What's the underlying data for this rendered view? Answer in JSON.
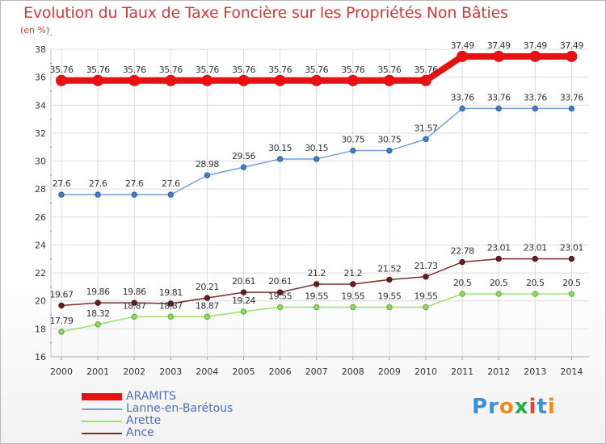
{
  "title": "Evolution du Taux de Taxe Foncière sur les Propriétés Non Bâties",
  "subtitle": "(en %)",
  "logo": {
    "letters": [
      "P",
      "r",
      "o",
      "x",
      "i",
      "t",
      "i"
    ],
    "colors": [
      "#3a8fd8",
      "#3a8fd8",
      "#f08a1c",
      "#2aa84a",
      "#e8432e",
      "#3a8fd8",
      "#f08a1c"
    ]
  },
  "chart_data": {
    "type": "line",
    "x": [
      "2000",
      "2001",
      "2002",
      "2003",
      "2004",
      "2005",
      "2006",
      "2007",
      "2008",
      "2009",
      "2010",
      "2011",
      "2012",
      "2013",
      "2014"
    ],
    "ylim": [
      16,
      38
    ],
    "yticks": [
      "16",
      "18",
      "20",
      "22",
      "24",
      "26",
      "28",
      "30",
      "32",
      "34",
      "36",
      "38"
    ],
    "grid": true,
    "legend": "bottom-left",
    "series": [
      {
        "name": "ARAMITS",
        "color": "#e81010",
        "values": [
          35.76,
          35.76,
          35.76,
          35.76,
          35.76,
          35.76,
          35.76,
          35.76,
          35.76,
          35.76,
          35.76,
          37.49,
          37.49,
          37.49,
          37.49
        ],
        "labels": [
          "35.76",
          "35.76",
          "35.76",
          "35.76",
          "35.76",
          "35.76",
          "35.76",
          "35.76",
          "35.76",
          "35.76",
          "35.76",
          "37.49",
          "37.49",
          "37.49",
          "37.49"
        ]
      },
      {
        "name": "Lanne-en-Barétous",
        "color": "#6fa0d8",
        "values": [
          27.6,
          27.6,
          27.6,
          27.6,
          28.98,
          29.56,
          30.15,
          30.15,
          30.75,
          30.75,
          31.57,
          33.76,
          33.76,
          33.76,
          33.76
        ],
        "labels": [
          "27.6",
          "27.6",
          "27.6",
          "27.6",
          "28.98",
          "29.56",
          "30.15",
          "30.15",
          "30.75",
          "30.75",
          "31.57",
          "33.76",
          "33.76",
          "33.76",
          "33.76"
        ]
      },
      {
        "name": "Arette",
        "color": "#9be26a",
        "values": [
          17.79,
          18.32,
          18.87,
          18.87,
          18.87,
          19.24,
          19.55,
          19.55,
          19.55,
          19.55,
          19.55,
          20.5,
          20.5,
          20.5,
          20.5
        ],
        "labels": [
          "17.79",
          "18.32",
          "18.87",
          "18.87",
          "18.87",
          "19.24",
          "19.55",
          "19.55",
          "19.55",
          "19.55",
          "19.55",
          "20.5",
          "20.5",
          "20.5",
          "20.5"
        ]
      },
      {
        "name": "Ance",
        "color": "#7a2d2d",
        "values": [
          19.67,
          19.86,
          19.86,
          19.81,
          20.21,
          20.61,
          20.61,
          21.2,
          21.2,
          21.52,
          21.73,
          22.78,
          23.01,
          23.01,
          23.01
        ],
        "labels": [
          "19.67",
          "19.86",
          "19.86",
          "19.81",
          "20.21",
          "20.61",
          "20.61",
          "21.2",
          "21.2",
          "21.52",
          "21.73",
          "22.78",
          "23.01",
          "23.01",
          "23.01"
        ]
      }
    ]
  }
}
